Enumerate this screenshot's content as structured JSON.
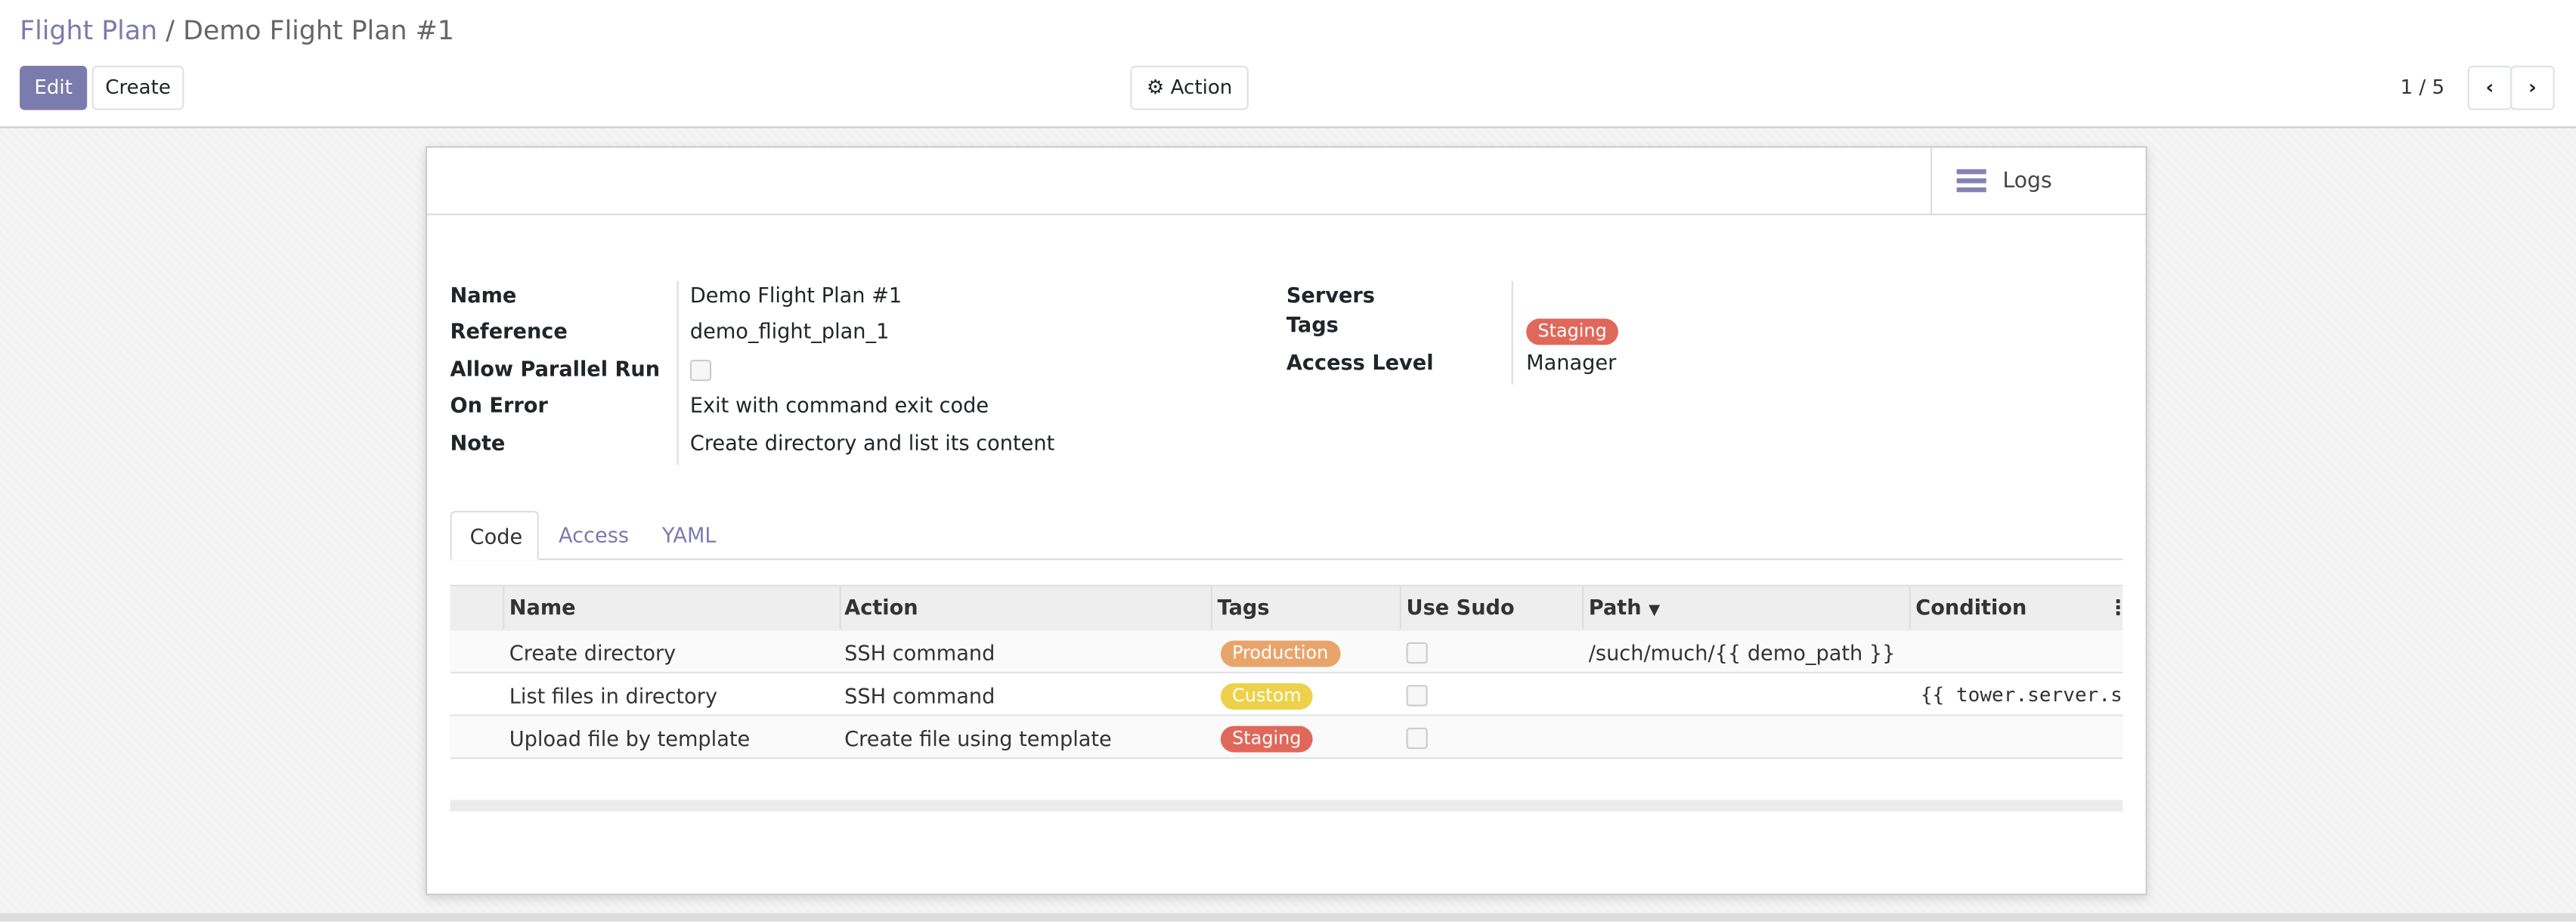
{
  "breadcrumb": {
    "parent": "Flight Plan",
    "separator": "/",
    "current": "Demo Flight Plan #1"
  },
  "toolbar": {
    "edit": "Edit",
    "create": "Create",
    "action": "Action",
    "pager": "1 / 5"
  },
  "card": {
    "logs": "Logs"
  },
  "fields": {
    "name": {
      "label": "Name",
      "value": "Demo Flight Plan #1"
    },
    "reference": {
      "label": "Reference",
      "value": "demo_flight_plan_1"
    },
    "parallel": {
      "label": "Allow Parallel Run",
      "checked": false
    },
    "on_error": {
      "label": "On Error",
      "value": "Exit with command exit code"
    },
    "note": {
      "label": "Note",
      "value": "Create directory and list its content"
    },
    "servers": {
      "label": "Servers",
      "value": ""
    },
    "tags": {
      "label": "Tags",
      "value": "Staging",
      "color": "#e0685a"
    },
    "access_level": {
      "label": "Access Level",
      "value": "Manager"
    }
  },
  "tabs": [
    {
      "label": "Code",
      "active": true
    },
    {
      "label": "Access"
    },
    {
      "label": "YAML"
    }
  ],
  "table": {
    "columns": [
      "Name",
      "Action",
      "Tags",
      "Use Sudo",
      "Path",
      "Condition"
    ],
    "rows": [
      {
        "name": "Create directory",
        "action": "SSH command",
        "tag": "Production",
        "tag_color": "#e8a56b",
        "sudo": false,
        "path": "/such/much/{{ demo_path }}",
        "condition": ""
      },
      {
        "name": "List files in directory",
        "action": "SSH command",
        "tag": "Custom",
        "tag_color": "#eed14a",
        "sudo": false,
        "path": "",
        "condition": "{{ tower.server.st"
      },
      {
        "name": "Upload file by template",
        "action": "Create file using template",
        "tag": "Staging",
        "tag_color": "#e0685a",
        "sudo": false,
        "path": "",
        "condition": ""
      }
    ]
  }
}
